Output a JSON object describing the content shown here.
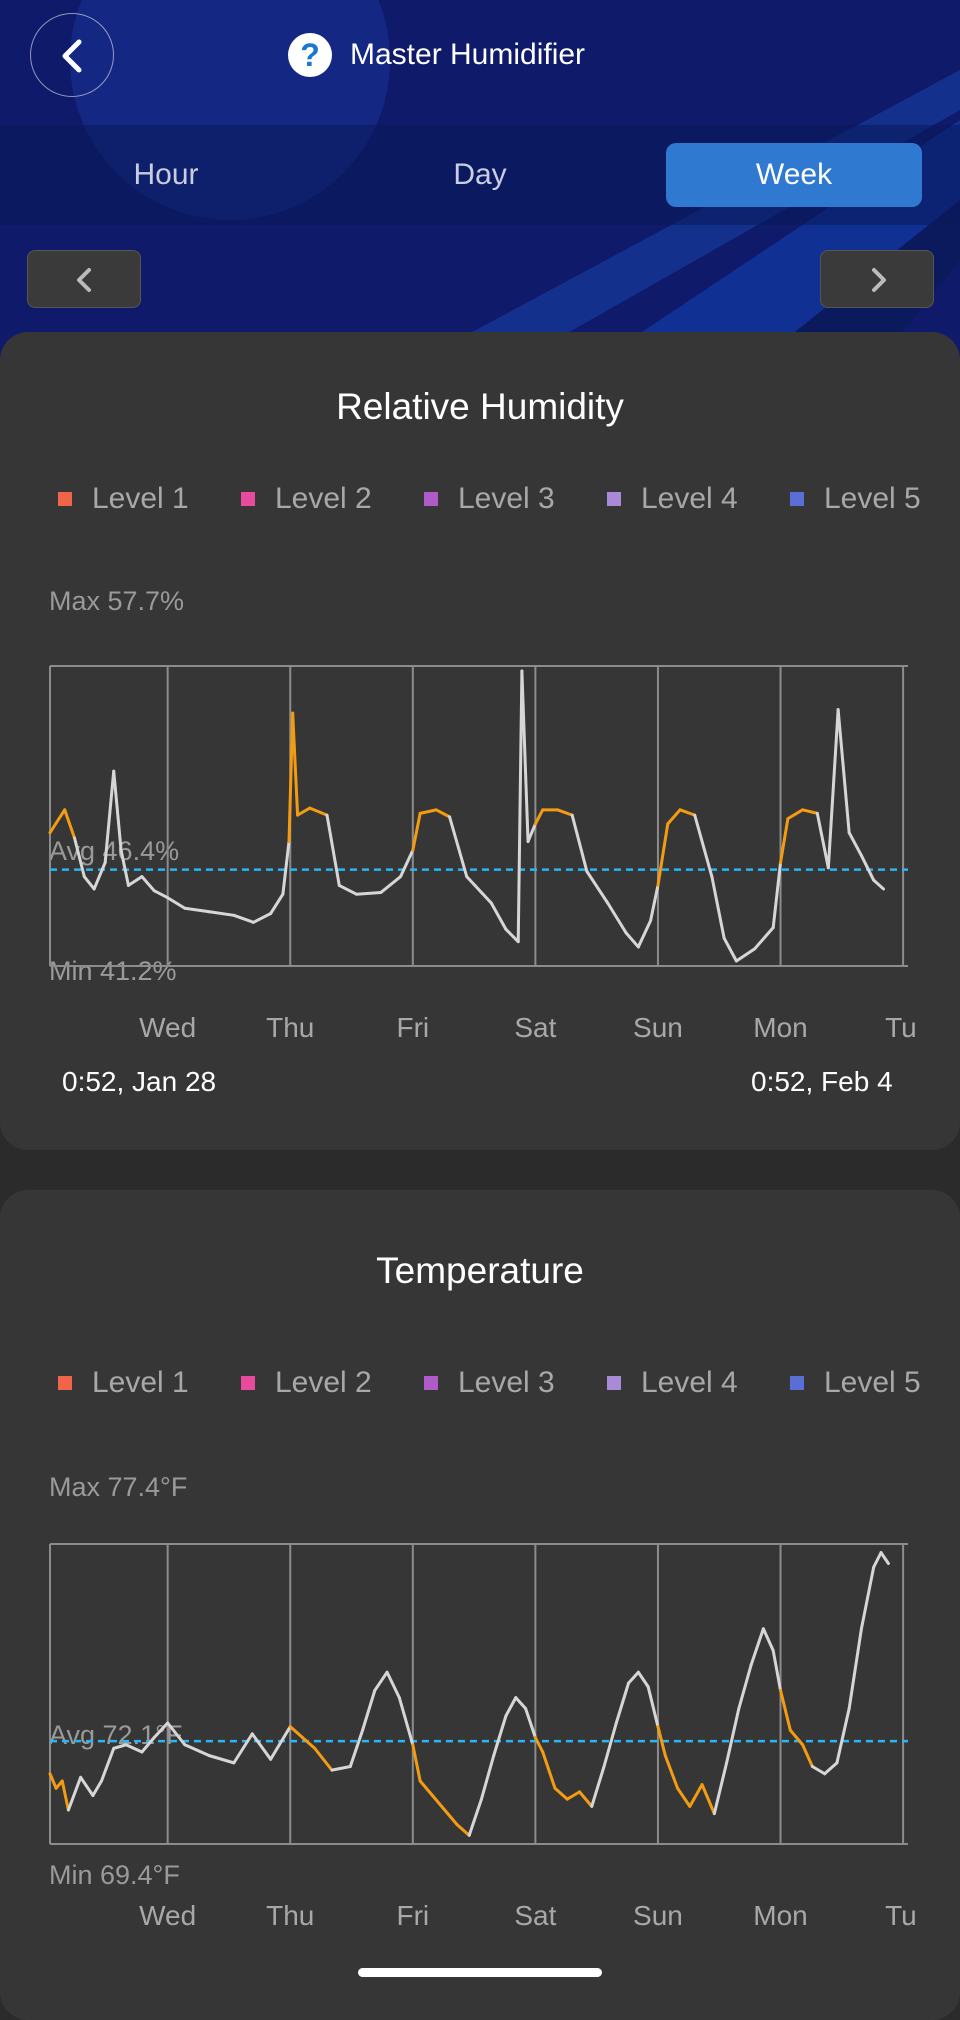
{
  "app": {
    "title": "Master Humidifier",
    "help_icon": "question-circle-icon",
    "back_icon": "chevron-left-icon"
  },
  "tabs": [
    {
      "label": "Hour",
      "active": false
    },
    {
      "label": "Day",
      "active": false
    },
    {
      "label": "Week",
      "active": true
    }
  ],
  "colors": {
    "accent": "#2f7ad0",
    "header_bg": "#0f1a6b",
    "line_normal": "#d6d6d6",
    "line_highlight": "#f39c12",
    "avg_line": "#29b6f6"
  },
  "legend": [
    {
      "label": "Level 1",
      "color": "#f0644a"
    },
    {
      "label": "Level 2",
      "color": "#e84a9e"
    },
    {
      "label": "Level 3",
      "color": "#b05cc8"
    },
    {
      "label": "Level 4",
      "color": "#a98ad6"
    },
    {
      "label": "Level 5",
      "color": "#5a6fd6"
    }
  ],
  "humidity": {
    "title": "Relative Humidity",
    "max_label": "Max 57.7%",
    "avg_label": "Avg 46.4%",
    "min_label": "Min 41.2%",
    "start_label": "0:52, Jan 28",
    "end_label": "0:52, Feb 4"
  },
  "temperature": {
    "title": "Temperature",
    "max_label": "Max 77.4°F",
    "avg_label": "Avg 72.1°F",
    "min_label": "Min 69.4°F"
  },
  "chart_data": [
    {
      "type": "line",
      "title": "Relative Humidity",
      "unit": "%",
      "x_range_days": [
        0,
        7
      ],
      "ylim": [
        41.2,
        57.7
      ],
      "max": 57.7,
      "avg": 46.4,
      "min": 41.2,
      "x_tick_labels": [
        "Wed",
        "Thu",
        "Fri",
        "Sat",
        "Sun",
        "Mon",
        "Tu"
      ],
      "x_ticks_days": [
        0.96,
        1.96,
        2.96,
        3.96,
        4.96,
        5.96,
        6.96
      ],
      "highlight_ranges_days": [
        [
          0.0,
          0.2
        ],
        [
          1.96,
          2.26
        ],
        [
          2.96,
          3.26
        ],
        [
          3.96,
          4.26
        ],
        [
          4.96,
          5.26
        ],
        [
          5.96,
          6.26
        ]
      ],
      "series": [
        {
          "points": [
            [
              0.0,
              48.5
            ],
            [
              0.12,
              49.8
            ],
            [
              0.2,
              48.2
            ],
            [
              0.28,
              46.0
            ],
            [
              0.36,
              45.3
            ],
            [
              0.45,
              46.8
            ],
            [
              0.52,
              52.0
            ],
            [
              0.58,
              47.5
            ],
            [
              0.64,
              45.5
            ],
            [
              0.75,
              46.0
            ],
            [
              0.85,
              45.2
            ],
            [
              0.96,
              44.8
            ],
            [
              1.1,
              44.2
            ],
            [
              1.3,
              44.0
            ],
            [
              1.5,
              43.8
            ],
            [
              1.66,
              43.4
            ],
            [
              1.8,
              43.9
            ],
            [
              1.9,
              45.0
            ],
            [
              1.95,
              48.0
            ],
            [
              1.98,
              55.3
            ],
            [
              2.02,
              49.5
            ],
            [
              2.12,
              49.9
            ],
            [
              2.26,
              49.5
            ],
            [
              2.36,
              45.5
            ],
            [
              2.5,
              45.0
            ],
            [
              2.7,
              45.1
            ],
            [
              2.86,
              46.0
            ],
            [
              2.96,
              47.5
            ],
            [
              3.02,
              49.6
            ],
            [
              3.15,
              49.8
            ],
            [
              3.26,
              49.4
            ],
            [
              3.4,
              46.0
            ],
            [
              3.6,
              44.5
            ],
            [
              3.72,
              43.0
            ],
            [
              3.82,
              42.3
            ],
            [
              3.85,
              57.7
            ],
            [
              3.9,
              48.0
            ],
            [
              3.96,
              49.0
            ],
            [
              4.02,
              49.8
            ],
            [
              4.14,
              49.8
            ],
            [
              4.26,
              49.5
            ],
            [
              4.38,
              46.3
            ],
            [
              4.55,
              44.5
            ],
            [
              4.7,
              42.8
            ],
            [
              4.8,
              42.0
            ],
            [
              4.9,
              43.5
            ],
            [
              4.96,
              45.5
            ],
            [
              5.04,
              49.0
            ],
            [
              5.14,
              49.8
            ],
            [
              5.26,
              49.5
            ],
            [
              5.4,
              46.0
            ],
            [
              5.5,
              42.5
            ],
            [
              5.6,
              41.2
            ],
            [
              5.75,
              41.9
            ],
            [
              5.9,
              43.1
            ],
            [
              5.96,
              46.8
            ],
            [
              6.02,
              49.3
            ],
            [
              6.14,
              49.8
            ],
            [
              6.26,
              49.6
            ],
            [
              6.35,
              46.5
            ],
            [
              6.43,
              55.5
            ],
            [
              6.52,
              48.5
            ],
            [
              6.62,
              47.2
            ],
            [
              6.72,
              45.8
            ],
            [
              6.8,
              45.3
            ]
          ]
        }
      ]
    },
    {
      "type": "line",
      "title": "Temperature",
      "unit": "°F",
      "x_range_days": [
        0,
        7
      ],
      "ylim": [
        69.4,
        77.4
      ],
      "max": 77.4,
      "avg": 72.1,
      "min": 69.4,
      "x_tick_labels": [
        "Wed",
        "Thu",
        "Fri",
        "Sat",
        "Sun",
        "Mon",
        "Tu"
      ],
      "x_ticks_days": [
        0.96,
        1.96,
        2.96,
        3.96,
        4.96,
        5.96,
        6.96
      ],
      "highlight_ranges_days": [
        [
          0.0,
          0.15
        ],
        [
          1.96,
          2.26
        ],
        [
          2.96,
          3.42
        ],
        [
          3.96,
          4.42
        ],
        [
          4.96,
          5.42
        ],
        [
          5.96,
          6.18
        ]
      ],
      "series": [
        {
          "points": [
            [
              0.0,
              71.2
            ],
            [
              0.05,
              70.8
            ],
            [
              0.1,
              71.0
            ],
            [
              0.15,
              70.2
            ],
            [
              0.25,
              71.1
            ],
            [
              0.35,
              70.6
            ],
            [
              0.42,
              71.0
            ],
            [
              0.52,
              71.9
            ],
            [
              0.62,
              72.0
            ],
            [
              0.75,
              71.8
            ],
            [
              0.85,
              72.2
            ],
            [
              0.96,
              72.6
            ],
            [
              1.1,
              72.0
            ],
            [
              1.3,
              71.7
            ],
            [
              1.5,
              71.5
            ],
            [
              1.65,
              72.3
            ],
            [
              1.8,
              71.6
            ],
            [
              1.96,
              72.5
            ],
            [
              2.06,
              72.2
            ],
            [
              2.16,
              71.9
            ],
            [
              2.3,
              71.3
            ],
            [
              2.45,
              71.4
            ],
            [
              2.55,
              72.4
            ],
            [
              2.65,
              73.5
            ],
            [
              2.75,
              74.0
            ],
            [
              2.85,
              73.3
            ],
            [
              2.96,
              72.0
            ],
            [
              3.02,
              71.0
            ],
            [
              3.12,
              70.6
            ],
            [
              3.22,
              70.2
            ],
            [
              3.32,
              69.8
            ],
            [
              3.42,
              69.5
            ],
            [
              3.52,
              70.5
            ],
            [
              3.62,
              71.7
            ],
            [
              3.72,
              72.8
            ],
            [
              3.8,
              73.3
            ],
            [
              3.88,
              73.0
            ],
            [
              3.96,
              72.2
            ],
            [
              4.02,
              71.8
            ],
            [
              4.12,
              70.8
            ],
            [
              4.22,
              70.5
            ],
            [
              4.32,
              70.7
            ],
            [
              4.42,
              70.3
            ],
            [
              4.52,
              71.4
            ],
            [
              4.62,
              72.6
            ],
            [
              4.72,
              73.7
            ],
            [
              4.8,
              74.0
            ],
            [
              4.88,
              73.6
            ],
            [
              4.96,
              72.5
            ],
            [
              5.02,
              71.7
            ],
            [
              5.12,
              70.8
            ],
            [
              5.22,
              70.3
            ],
            [
              5.32,
              70.9
            ],
            [
              5.42,
              70.1
            ],
            [
              5.52,
              71.5
            ],
            [
              5.62,
              73.0
            ],
            [
              5.72,
              74.2
            ],
            [
              5.82,
              75.2
            ],
            [
              5.9,
              74.6
            ],
            [
              5.96,
              73.5
            ],
            [
              6.04,
              72.4
            ],
            [
              6.14,
              72.0
            ],
            [
              6.22,
              71.4
            ],
            [
              6.32,
              71.2
            ],
            [
              6.42,
              71.5
            ],
            [
              6.52,
              73.0
            ],
            [
              6.62,
              75.2
            ],
            [
              6.72,
              76.9
            ],
            [
              6.78,
              77.3
            ],
            [
              6.84,
              77.0
            ]
          ]
        }
      ]
    }
  ]
}
